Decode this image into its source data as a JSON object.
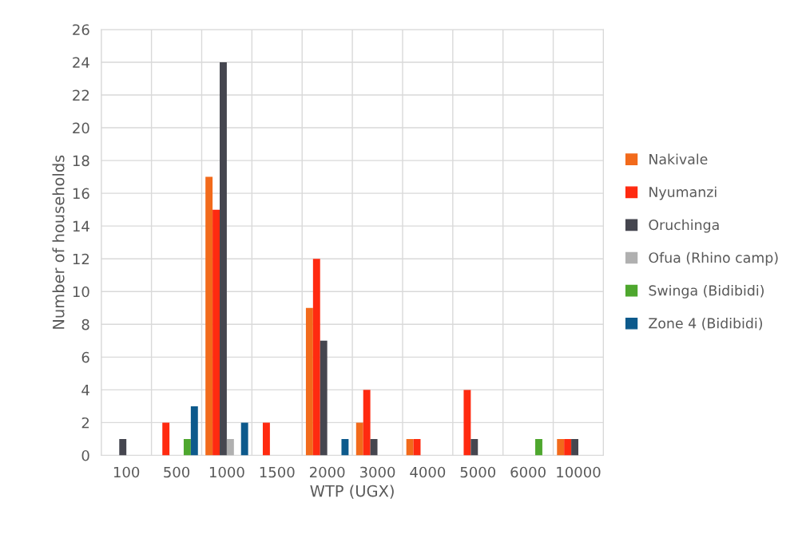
{
  "chart_data": {
    "type": "bar",
    "xlabel": "WTP (UGX)",
    "ylabel": "Number of households",
    "categories": [
      "100",
      "500",
      "1000",
      "1500",
      "2000",
      "3000",
      "4000",
      "5000",
      "6000",
      "10000"
    ],
    "series": [
      {
        "name": "Nakivale",
        "color": "#f26a1b",
        "values": [
          0,
          0,
          17,
          0,
          9,
          2,
          1,
          0,
          0,
          1
        ]
      },
      {
        "name": "Nyumanzi",
        "color": "#ff2a10",
        "values": [
          0,
          2,
          15,
          2,
          12,
          4,
          1,
          4,
          0,
          1
        ]
      },
      {
        "name": "Oruchinga",
        "color": "#45464f",
        "values": [
          1,
          0,
          24,
          0,
          7,
          1,
          0,
          1,
          0,
          1
        ]
      },
      {
        "name": "Ofua (Rhino camp)",
        "color": "#b0b0b0",
        "values": [
          0,
          0,
          1,
          0,
          0,
          0,
          0,
          0,
          0,
          0
        ]
      },
      {
        "name": "Swinga (Bidibidi)",
        "color": "#4ea72e",
        "values": [
          0,
          1,
          0,
          0,
          0,
          0,
          0,
          0,
          1,
          0
        ]
      },
      {
        "name": "Zone 4 (Bidibidi)",
        "color": "#0d5a8c",
        "values": [
          0,
          3,
          2,
          0,
          1,
          0,
          0,
          0,
          0,
          0
        ]
      }
    ],
    "ylim": [
      0,
      26
    ],
    "yticks": [
      0,
      2,
      4,
      6,
      8,
      10,
      12,
      14,
      16,
      18,
      20,
      22,
      24,
      26
    ],
    "grid": true,
    "legend": "right"
  }
}
